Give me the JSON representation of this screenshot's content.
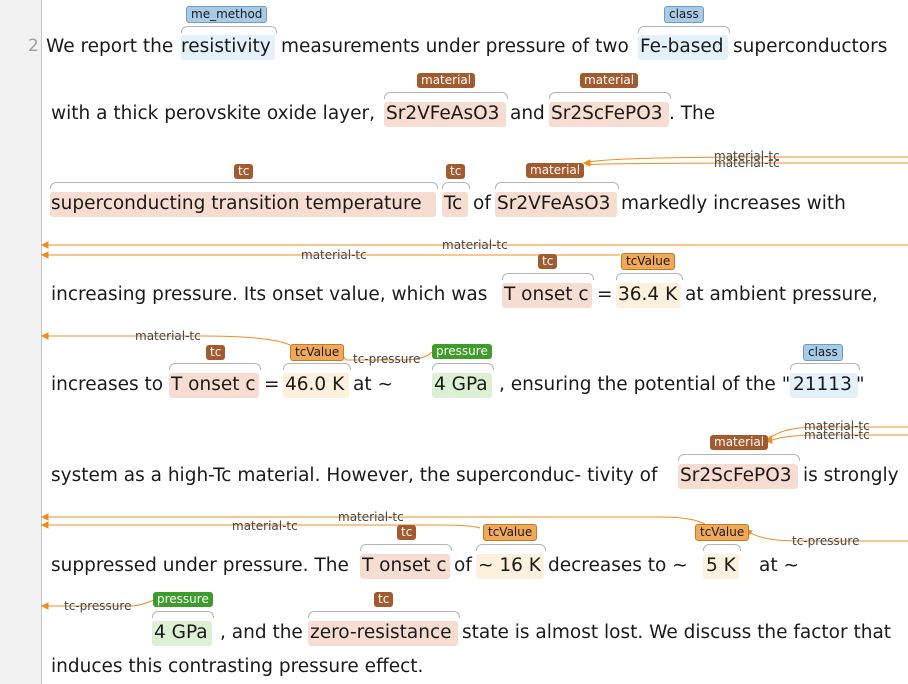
{
  "line_number": "2",
  "colors": {
    "material": "#a35a2e",
    "tc": "#a35a2e",
    "tcValue": "#f0a95a",
    "pressure": "#3d9c2a",
    "class": "#a8cbe8",
    "me_method": "#a8cbe8",
    "arc": "#f08c1e",
    "span_material": "#f7ddd1",
    "span_value": "#fdf0dd",
    "span_pressure": "#dcf0d4",
    "span_class": "#e4f1fb"
  },
  "labels": {
    "me_method": "me_method",
    "class": "class",
    "material": "material",
    "tc": "tc",
    "tcValue": "tcValue",
    "pressure": "pressure"
  },
  "relations": {
    "material_tc": "material-tc",
    "tc_pressure": "tc-pressure"
  },
  "lines": [
    {
      "tokens": [
        "We report the",
        "resistivity",
        "measurements under pressure of two",
        "Fe-based",
        "superconductors"
      ]
    },
    {
      "tokens": [
        "with a thick perovskite oxide layer,",
        "Sr2VFeAsO3",
        "and",
        "Sr2ScFePO3",
        ". The"
      ]
    },
    {
      "tokens": [
        "superconducting transition temperature",
        "Tc",
        "of",
        "Sr2VFeAsO3",
        "markedly increases with"
      ]
    },
    {
      "tokens": [
        "increasing pressure. Its onset value, which was",
        "T onset c",
        "=",
        "36.4 K",
        "at ambient pressure,"
      ]
    },
    {
      "tokens": [
        "increases to",
        "T onset c",
        "=",
        "46.0 K",
        "at ∼",
        "4 GPa",
        ", ensuring the potential of the \"",
        "21113",
        "\""
      ]
    },
    {
      "tokens": [
        "system as a high-Tc material. However, the superconduc- tivity of",
        "Sr2ScFePO3",
        "is strongly"
      ]
    },
    {
      "tokens": [
        "suppressed under pressure. The",
        "T onset c",
        "of",
        "∼ 16 K",
        "decreases to ∼",
        "5 K",
        "at ∼"
      ]
    },
    {
      "tokens": [
        "4 GPa",
        ", and the",
        "zero-resistance",
        "state is almost lost. We discuss the factor that"
      ]
    },
    {
      "tokens": [
        "induces this contrasting pressure effect."
      ]
    }
  ]
}
